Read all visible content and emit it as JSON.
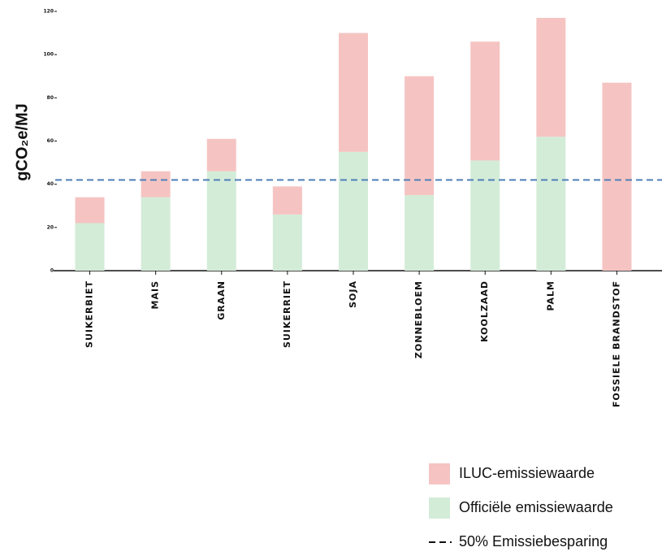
{
  "chart_data": {
    "type": "bar",
    "stacked": true,
    "y_label": "gCO₂e/MJ",
    "categories": [
      "SUIKERBIET",
      "MAIS",
      "GRAAN",
      "SUIKERRIET",
      "SOJA",
      "ZONNEBLOEM",
      "KOOLZAAD",
      "PALM",
      "FOSSIELE BRANDSTOF"
    ],
    "series": [
      {
        "name": "Officiële emissiewaarde",
        "color": "#d3ecd8",
        "values": [
          22,
          34,
          46,
          26,
          55,
          35,
          51,
          62,
          null
        ]
      },
      {
        "name": "ILUC-emissiewaarde",
        "color": "#f5c4c2",
        "values": [
          12,
          12,
          15,
          13,
          55,
          55,
          55,
          55,
          87
        ]
      }
    ],
    "reference_line": {
      "name": "50% Emissiebesparing",
      "value": 42,
      "color": "#4f7fb8"
    },
    "ylim": [
      0,
      120
    ],
    "yticks": [
      0,
      20,
      40,
      60,
      80,
      100,
      120
    ]
  }
}
